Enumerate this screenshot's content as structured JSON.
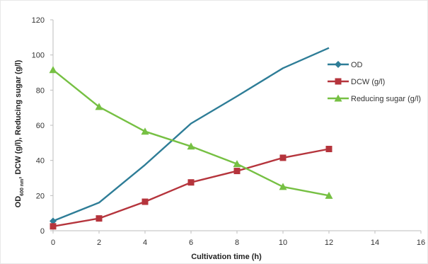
{
  "chart_data": {
    "type": "line",
    "title": "",
    "xlabel": "Cultivation time (h)",
    "ylabel_parts": {
      "pre": "OD",
      "sub": "600 nm",
      "post": ", DCW (g/l), Reducing sugar (g/l)"
    },
    "xlim": [
      0,
      16
    ],
    "ylim": [
      0,
      120
    ],
    "xticks": [
      0,
      2,
      4,
      6,
      8,
      10,
      12,
      14,
      16
    ],
    "yticks": [
      0,
      20,
      40,
      60,
      80,
      100,
      120
    ],
    "grid": false,
    "legend_position": "right",
    "series": [
      {
        "name": "OD",
        "color": "#2E7D97",
        "marker": "diamond",
        "points": [
          [
            0,
            5.5
          ],
          [
            2,
            16
          ],
          [
            4,
            37.5
          ],
          [
            6,
            61
          ],
          [
            8,
            76.5
          ],
          [
            10,
            92.5
          ],
          [
            12,
            104
          ]
        ],
        "show_markers": [
          true,
          false,
          false,
          false,
          false,
          false,
          false
        ]
      },
      {
        "name": "DCW (g/l)",
        "color": "#B5343C",
        "marker": "square",
        "points": [
          [
            0,
            2.5
          ],
          [
            2,
            7
          ],
          [
            4,
            16.5
          ],
          [
            6,
            27.5
          ],
          [
            8,
            34
          ],
          [
            10,
            41.5
          ],
          [
            12,
            46.5
          ]
        ],
        "show_markers": [
          true,
          true,
          true,
          true,
          true,
          true,
          true
        ]
      },
      {
        "name": "Reducing sugar (g/l)",
        "color": "#76C043",
        "marker": "triangle",
        "points": [
          [
            0,
            91.5
          ],
          [
            2,
            70.5
          ],
          [
            4,
            56.5
          ],
          [
            6,
            48
          ],
          [
            8,
            38
          ],
          [
            10,
            25
          ],
          [
            12,
            20
          ]
        ],
        "show_markers": [
          true,
          true,
          true,
          true,
          true,
          true,
          true
        ]
      }
    ]
  }
}
